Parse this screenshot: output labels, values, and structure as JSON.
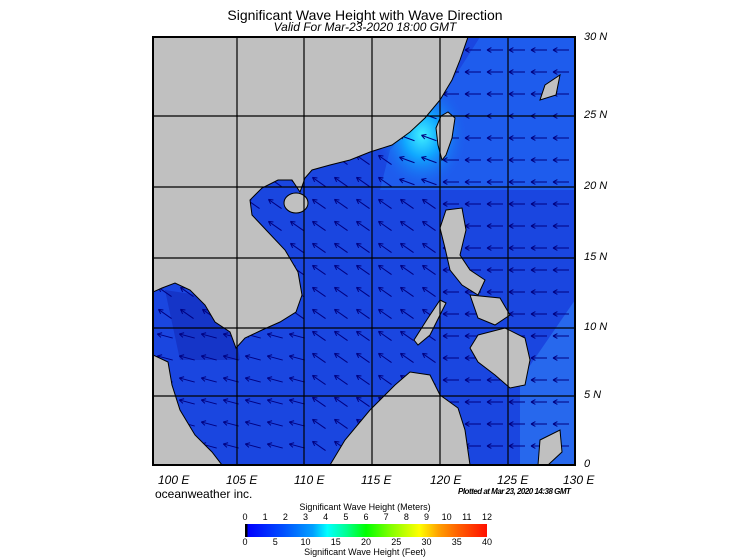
{
  "header": {
    "title": "Significant Wave Height with Wave Direction",
    "subtitle": "Valid For Mar-23-2020 18:00 GMT"
  },
  "map": {
    "region": "South China Sea",
    "lon_labels": [
      "100 E",
      "105 E",
      "110 E",
      "115 E",
      "120 E",
      "125 E",
      "130 E"
    ],
    "lat_labels": [
      "30 N",
      "25 N",
      "20 N",
      "15 N",
      "10 N",
      "5 N",
      "0"
    ],
    "land_color": "#c0c0c0",
    "ocean_color": "#1a46e0",
    "max_wave_area_color": "#30e0ff",
    "arrow_color": "#000080",
    "wave_direction": "toward southwest west of 120 E; toward west east of 120 E"
  },
  "footer": {
    "brand": "oceanweather inc.",
    "plotted": "Plotted at Mar 23, 2020 14:38 GMT"
  },
  "legend": {
    "meters_title": "Significant Wave Height (Meters)",
    "feet_title": "Significant Wave Height (Feet)",
    "meters_ticks": [
      "0",
      "1",
      "2",
      "3",
      "4",
      "5",
      "6",
      "7",
      "8",
      "9",
      "10",
      "11",
      "12"
    ],
    "feet_ticks": [
      "0",
      "5",
      "10",
      "15",
      "20",
      "25",
      "30",
      "35",
      "40"
    ]
  }
}
